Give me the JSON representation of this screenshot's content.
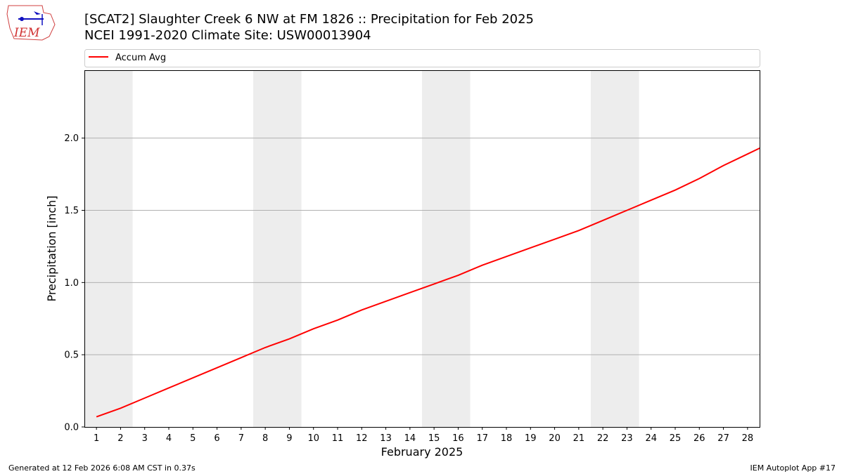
{
  "logo": {
    "text": "IEM"
  },
  "chart_data": {
    "type": "line",
    "title": "[SCAT2] Slaughter Creek 6 NW at FM 1826 :: Precipitation for Feb 2025",
    "subtitle": "NCEI 1991-2020 Climate Site: USW00013904",
    "xlabel": "February 2025",
    "ylabel": "Precipitation [inch]",
    "xlim": [
      0.5,
      28.5
    ],
    "ylim": [
      0,
      2.47
    ],
    "xticks": [
      1,
      2,
      3,
      4,
      5,
      6,
      7,
      8,
      9,
      10,
      11,
      12,
      13,
      14,
      15,
      16,
      17,
      18,
      19,
      20,
      21,
      22,
      23,
      24,
      25,
      26,
      27,
      28
    ],
    "yticks": [
      "0.0",
      "0.5",
      "1.0",
      "1.5",
      "2.0"
    ],
    "grid": "horizontal",
    "legend_position": "top",
    "weekend_shading": [
      [
        0.5,
        2.5
      ],
      [
        7.5,
        9.5
      ],
      [
        14.5,
        16.5
      ],
      [
        21.5,
        23.5
      ]
    ],
    "series": [
      {
        "name": "Accum Avg",
        "color": "#ff0000",
        "x": [
          1,
          2,
          3,
          4,
          5,
          6,
          7,
          8,
          9,
          10,
          11,
          12,
          13,
          14,
          15,
          16,
          17,
          18,
          19,
          20,
          21,
          22,
          23,
          24,
          25,
          26,
          27,
          28,
          29
        ],
        "values": [
          0.07,
          0.13,
          0.2,
          0.27,
          0.34,
          0.41,
          0.48,
          0.55,
          0.61,
          0.68,
          0.74,
          0.81,
          0.87,
          0.93,
          0.99,
          1.05,
          1.12,
          1.18,
          1.24,
          1.3,
          1.36,
          1.43,
          1.5,
          1.57,
          1.64,
          1.72,
          1.81,
          1.89,
          1.97
        ]
      }
    ]
  },
  "footer": {
    "left": "Generated at 12 Feb 2026 6:08 AM CST in 0.37s",
    "right": "IEM Autoplot App #17"
  }
}
